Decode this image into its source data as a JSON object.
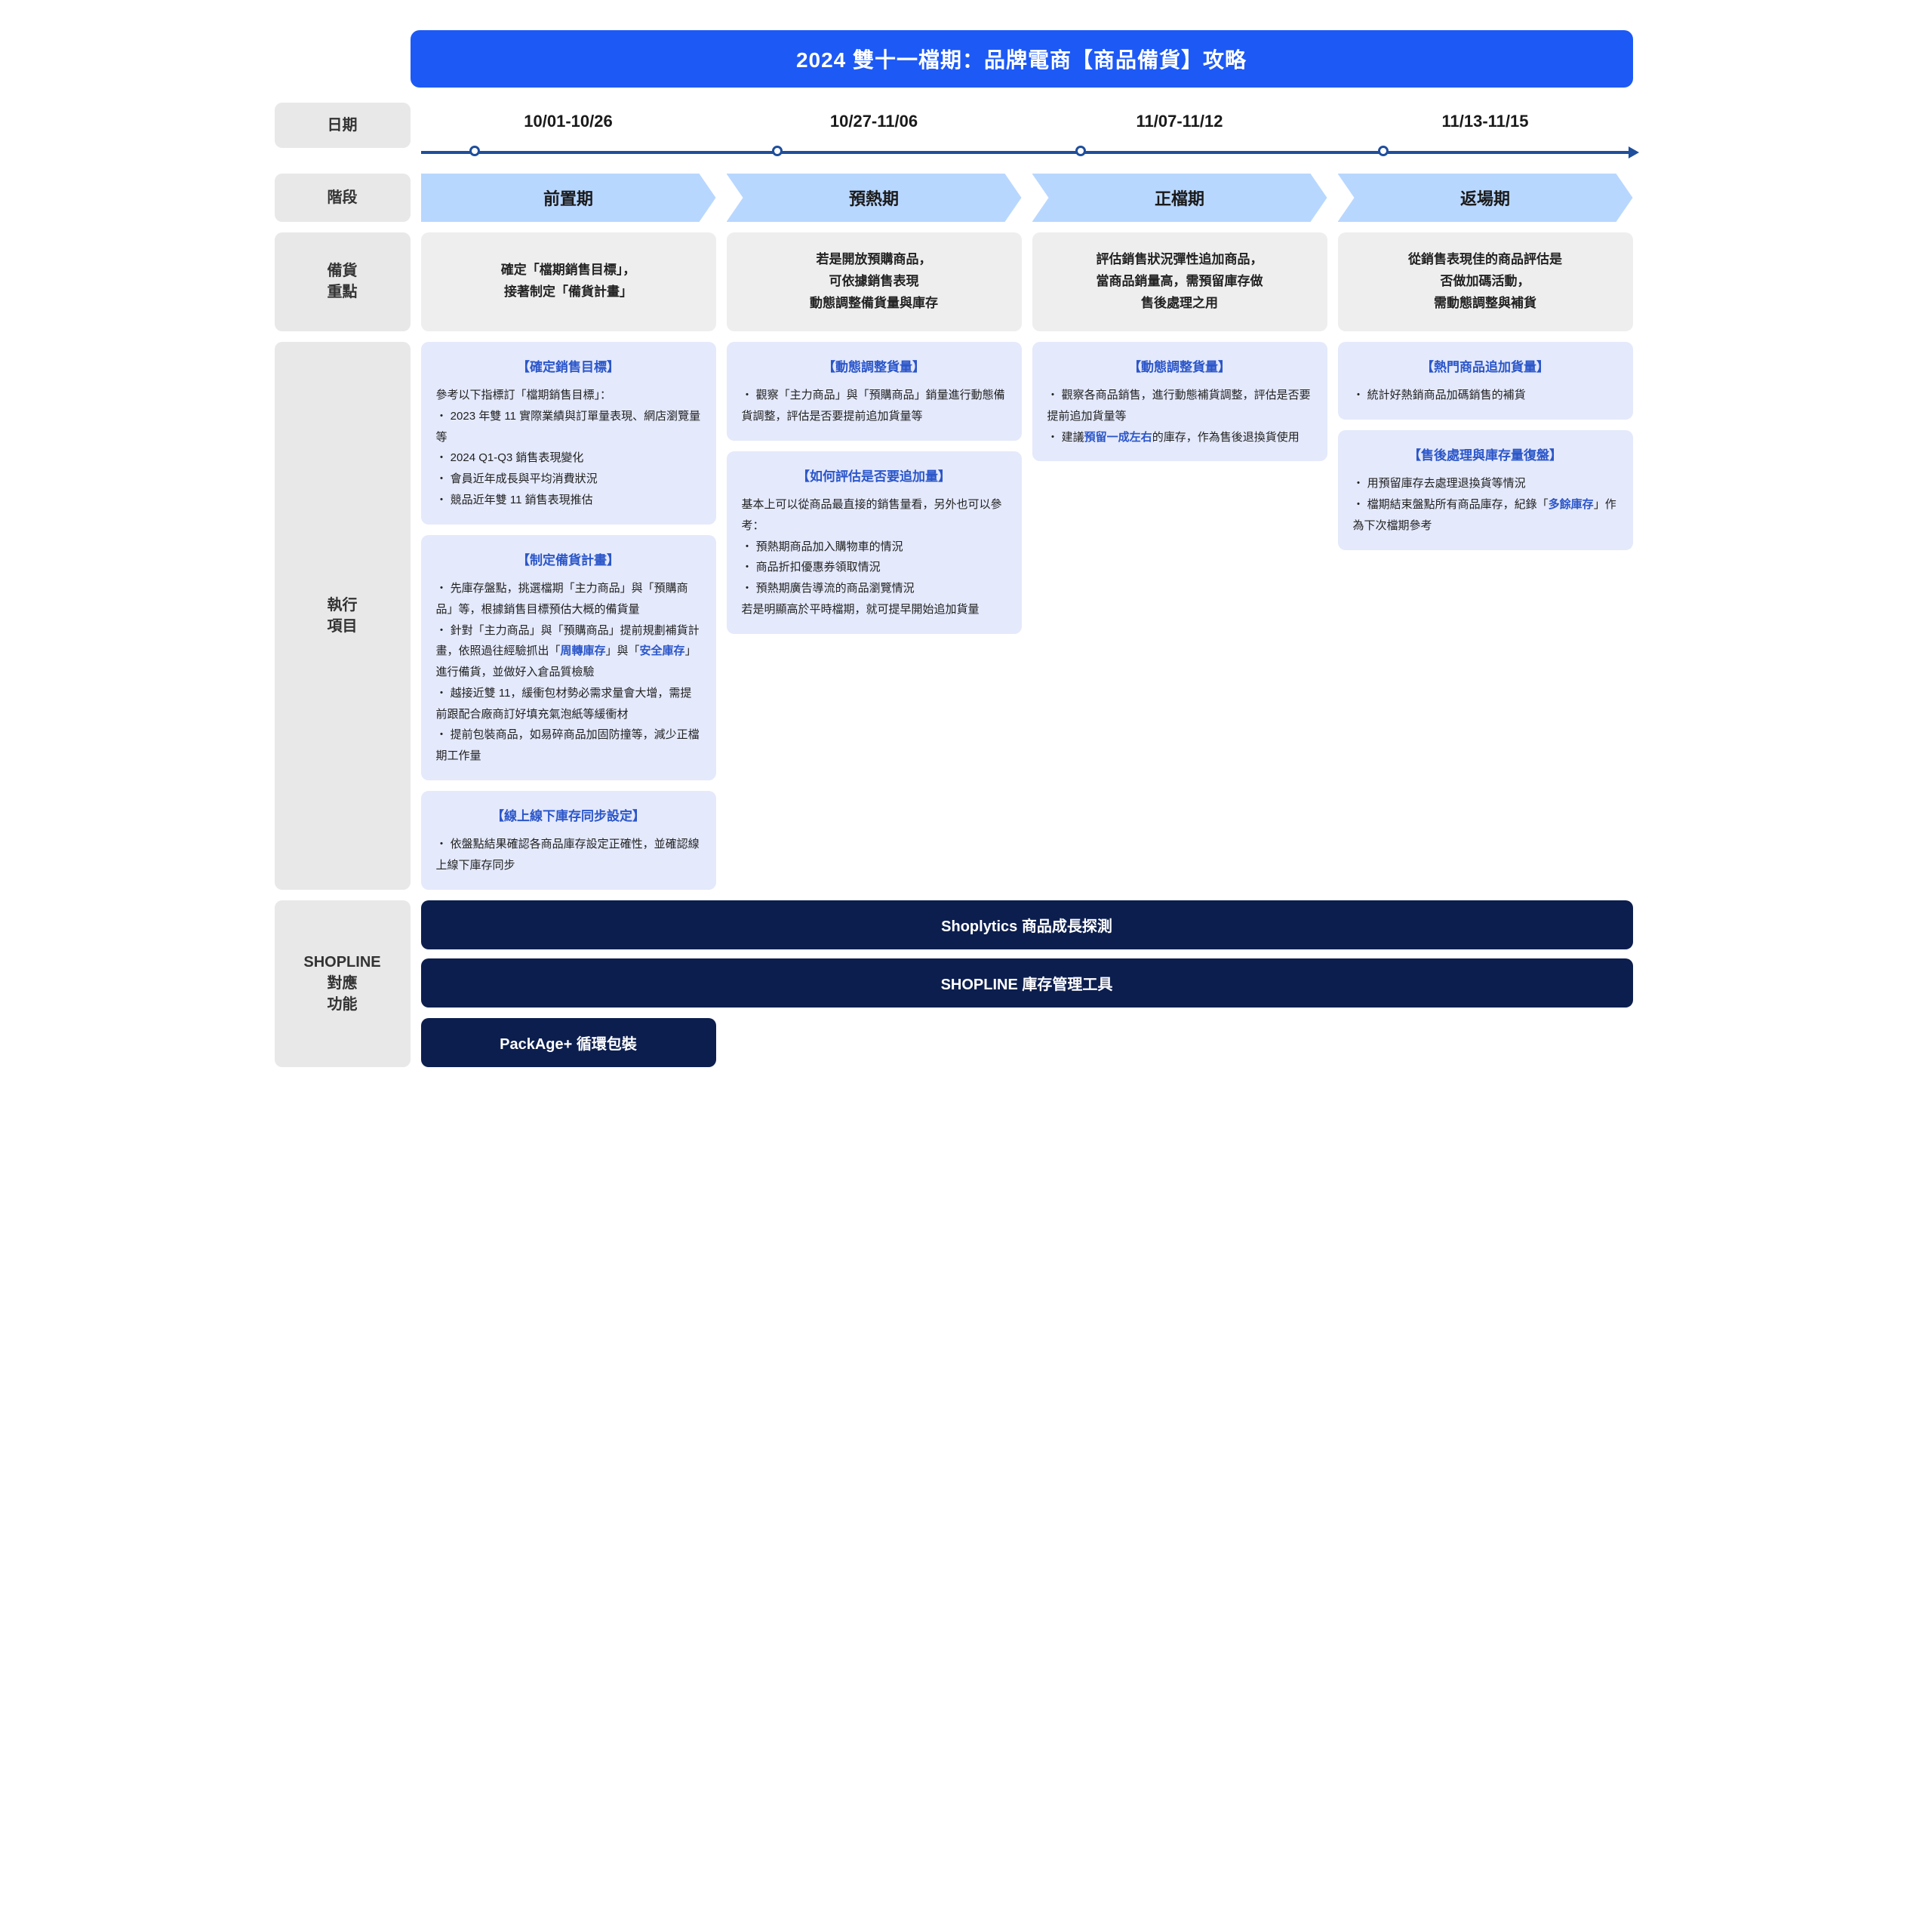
{
  "title": "2024 雙十一檔期：品牌電商【商品備貨】攻略",
  "labels": {
    "date": "日期",
    "phase": "階段",
    "focus": "備貨\n重點",
    "exec": "執行\n項目",
    "tools": "SHOPLINE\n對應\n功能"
  },
  "dates": [
    "10/01-10/26",
    "10/27-11/06",
    "11/07-11/12",
    "11/13-11/15"
  ],
  "phases": [
    "前置期",
    "預熱期",
    "正檔期",
    "返場期"
  ],
  "focus": [
    "確定「檔期銷售目標」，\n接著制定「備貨計畫」",
    "若是開放預購商品，\n可依據銷售表現\n動態調整備貨量與庫存",
    "評估銷售狀況彈性追加商品，\n當商品銷量高，需預留庫存做\n售後處理之用",
    "從銷售表現佳的商品評估是\n否做加碼活動，\n需動態調整與補貨"
  ],
  "exec": {
    "col1": [
      {
        "title": "【確定銷售目標】",
        "body": "參考以下指標訂「檔期銷售目標」：\n・ 2023 年雙 11 實際業績與訂單量表現、網店瀏覽量等\n・ 2024 Q1-Q3 銷售表現變化\n・ 會員近年成長與平均消費狀況\n・ 競品近年雙 11 銷售表現推估"
      },
      {
        "title": "【制定備貨計畫】",
        "body": "・ 先庫存盤點，挑選檔期「主力商品」與「預購商品」等，根據銷售目標預估大概的備貨量\n・ 針對「主力商品」與「預購商品」提前規劃補貨計畫，依照過往經驗抓出「<span class=\"hl\">周轉庫存</span>」與「<span class=\"hl\">安全庫存</span>」進行備貨，並做好入倉品質檢驗\n・ 越接近雙 11，緩衝包材勢必需求量會大增，需提前跟配合廠商訂好填充氣泡紙等緩衝材\n・ 提前包裝商品，如易碎商品加固防撞等，減少正檔期工作量"
      },
      {
        "title": "【線上線下庫存同步設定】",
        "body": "・ 依盤點結果確認各商品庫存設定正確性，並確認線上線下庫存同步"
      }
    ],
    "col2": [
      {
        "title": "【動態調整貨量】",
        "body": "・ 觀察「主力商品」與「預購商品」銷量進行動態備貨調整，評估是否要提前追加貨量等"
      },
      {
        "title": "【如何評估是否要追加量】",
        "body": "基本上可以從商品最直接的銷售量看，另外也可以參考：\n・ 預熱期商品加入購物車的情況\n・ 商品折扣優惠券領取情況\n・ 預熱期廣告導流的商品瀏覽情況\n若是明顯高於平時檔期，就可提早開始追加貨量"
      }
    ],
    "col3": [
      {
        "title": "【動態調整貨量】",
        "body": "・ 觀察各商品銷售，進行動態補貨調整，評估是否要提前追加貨量等\n・ 建議<span class=\"hl\">預留一成左右</span>的庫存，作為售後退換貨使用"
      }
    ],
    "col4": [
      {
        "title": "【熱門商品追加貨量】",
        "body": "・ 統計好熱銷商品加碼銷售的補貨"
      },
      {
        "title": "【售後處理與庫存量復盤】",
        "body": "・ 用預留庫存去處理退換貨等情況\n・ 檔期結束盤點所有商品庫存，紀錄「<span class=\"hl\">多餘庫存</span>」作為下次檔期參考"
      }
    ]
  },
  "tools": {
    "full": [
      "Shoplytics 商品成長探測",
      "SHOPLINE 庫存管理工具"
    ],
    "short": "PackAge+ 循環包裝"
  },
  "colors": {
    "primary": "#1d59f5",
    "phase_bg": "#b8d7ff",
    "card_bg": "#e4e9fb",
    "label_bg": "#e8e8e8",
    "focus_bg": "#eeeeee",
    "tool_bg": "#0c1e4e",
    "timeline": "#1f4e9c",
    "highlight": "#2b56c9"
  },
  "timeline_dots_pct": [
    4,
    29,
    54,
    79
  ]
}
